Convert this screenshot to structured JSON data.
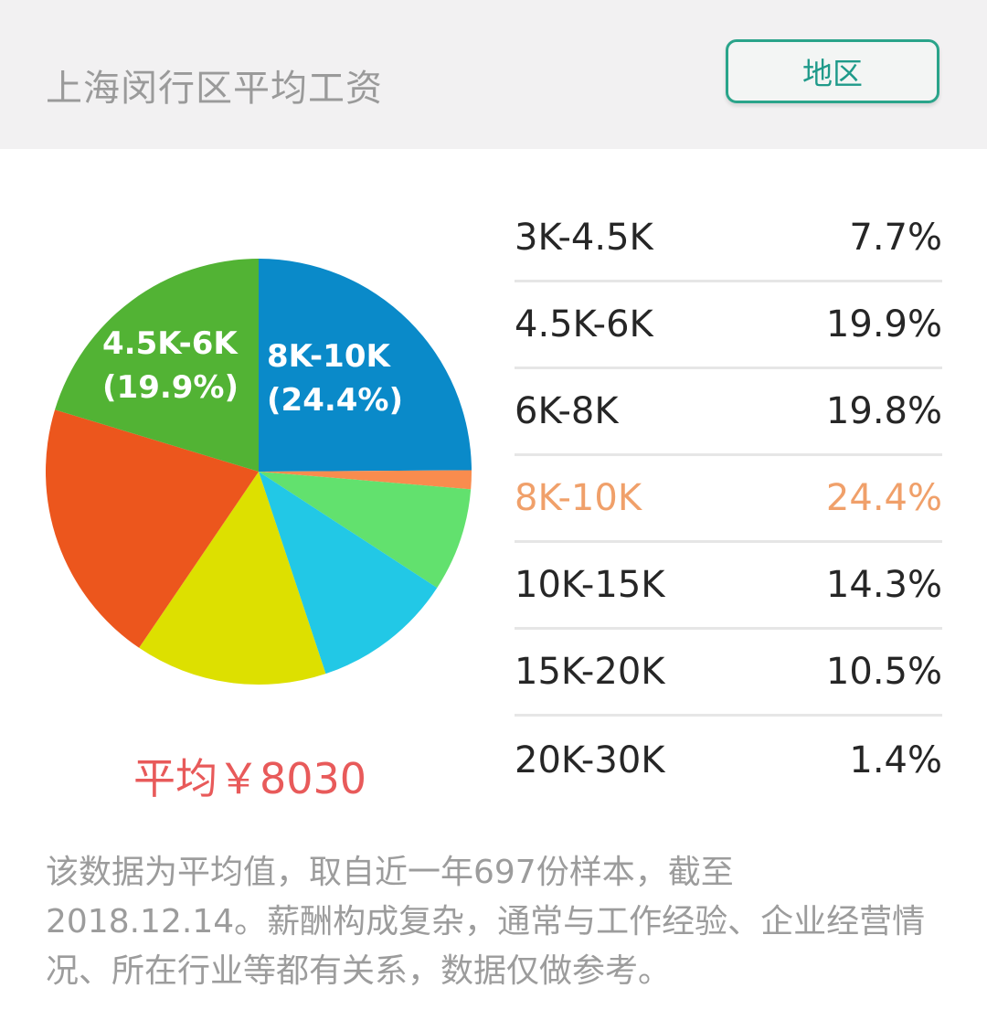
{
  "header": {
    "title": "上海闵行区平均工资",
    "region_button": "地区"
  },
  "average": {
    "label": "平均￥8030"
  },
  "pie_labels": [
    {
      "line1": "4.5K-6K",
      "line2": "(19.9%)"
    },
    {
      "line1": "8K-10K",
      "line2": "(24.4%)"
    }
  ],
  "legend": [
    {
      "range": "3K-4.5K",
      "percent": "7.7%"
    },
    {
      "range": "4.5K-6K",
      "percent": "19.9%"
    },
    {
      "range": "6K-8K",
      "percent": "19.8%"
    },
    {
      "range": "8K-10K",
      "percent": "24.4%",
      "highlight": true
    },
    {
      "range": "10K-15K",
      "percent": "14.3%"
    },
    {
      "range": "15K-20K",
      "percent": "10.5%"
    },
    {
      "range": "20K-30K",
      "percent": "1.4%"
    }
  ],
  "note": "该数据为平均值，取自近一年697份样本，截至2018.12.14。薪酬构成复杂，通常与工作经验、企业经营情况、所在行业等都有关系，数据仅做参考。",
  "chart_data": {
    "type": "pie",
    "title": "上海闵行区平均工资",
    "categories": [
      "8K-10K",
      "20K-30K",
      "3K-4.5K",
      "15K-20K",
      "10K-15K",
      "6K-8K",
      "4.5K-6K"
    ],
    "values": [
      24.4,
      1.4,
      7.7,
      10.5,
      14.3,
      19.8,
      19.9
    ],
    "colors": [
      "#0a8ac9",
      "#f98c4e",
      "#62e16e",
      "#22c8e6",
      "#dde000",
      "#ec561d",
      "#52b334"
    ],
    "start_angle": "12 o'clock, clockwise",
    "slice_labels": [
      "4.5K-6K (19.9%)",
      "8K-10K (24.4%)"
    ],
    "summary": "平均￥8030",
    "sample_size": 697,
    "legend_position": "right"
  }
}
